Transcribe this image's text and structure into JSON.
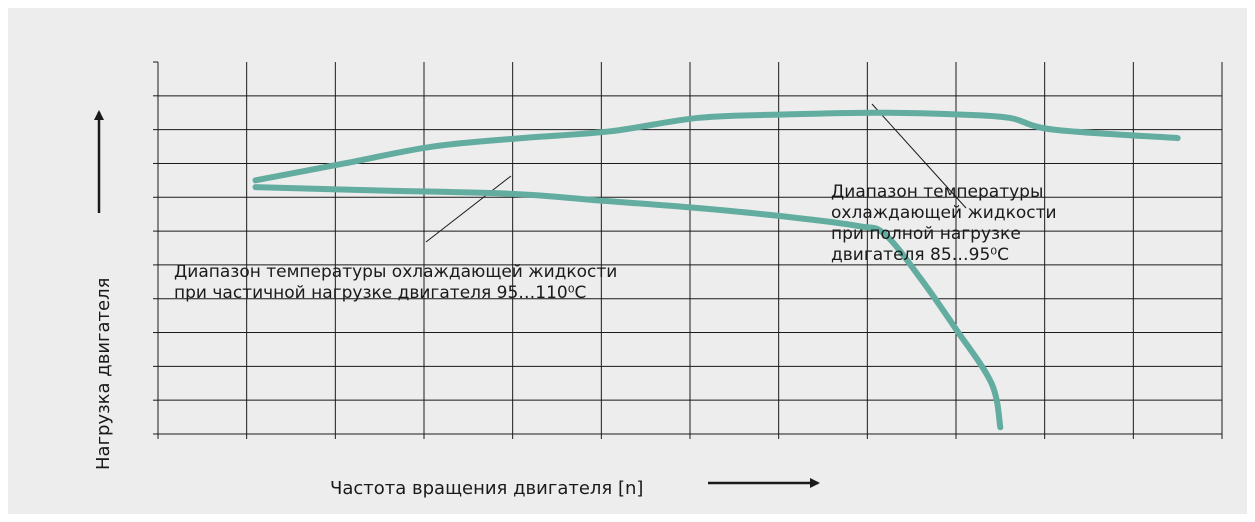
{
  "chart_data": {
    "type": "line",
    "title": "",
    "xlabel": "Частота вращения двигателя [n]",
    "ylabel": "Нагрузка двигателя",
    "xlim": [
      0,
      12
    ],
    "ylim": [
      0,
      11
    ],
    "grid": true,
    "axis_values_printed": false,
    "series": [
      {
        "x": [
          1.1,
          2.1,
          3.1,
          4.1,
          5.1,
          6.1,
          7.1,
          8.1,
          9.0,
          9.6,
          10.1,
          11.5
        ],
        "y": [
          7.5,
          8.0,
          8.5,
          8.75,
          8.95,
          9.35,
          9.45,
          9.5,
          9.45,
          9.35,
          9.0,
          8.75
        ]
      },
      {
        "x": [
          1.1,
          2.5,
          4.0,
          5.0,
          6.0,
          7.0,
          7.9,
          8.2,
          8.6,
          9.0,
          9.4,
          9.5
        ],
        "y": [
          7.3,
          7.2,
          7.1,
          6.9,
          6.7,
          6.45,
          6.15,
          5.9,
          4.6,
          3.1,
          1.5,
          0.2
        ]
      }
    ],
    "annotations": [
      {
        "id": "full-load",
        "lines": [
          "Диапазон температуры",
          "охлаждающей жидкости",
          "при полной нагрузке",
          "двигателя 85…95⁰С"
        ]
      },
      {
        "id": "partial-load",
        "lines": [
          "Диапазон температуры охлаждающей жидкости",
          "при частичной нагрузке двигателя 95…110⁰С"
        ]
      }
    ]
  },
  "style": {
    "line_color": "#63aca0",
    "grid_color": "#1a1a1a",
    "panel_color": "#ededed",
    "text_color": "#1a1a1a"
  }
}
